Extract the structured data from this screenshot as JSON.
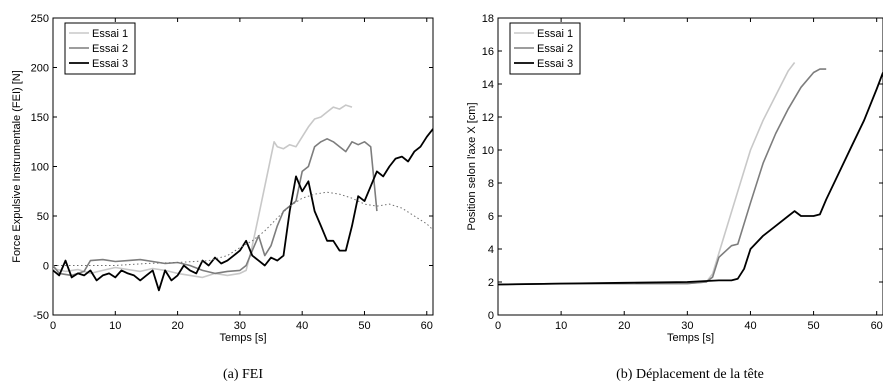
{
  "chart_data": [
    {
      "type": "line",
      "caption": "(a)  FEI",
      "xlabel": "Temps [s]",
      "ylabel": "Force Expulsive Instrumentale (FEI) [N]",
      "xlim": [
        0,
        61
      ],
      "ylim": [
        -50,
        250
      ],
      "xticks": [
        0,
        10,
        20,
        30,
        40,
        50,
        60
      ],
      "yticks": [
        -50,
        0,
        50,
        100,
        150,
        200,
        250
      ],
      "legend_position": "top-left",
      "series": [
        {
          "name": "Essai 1",
          "color": "#c8c8c8",
          "width": 1.6,
          "dash": "",
          "x": [
            0,
            2,
            4,
            6,
            8,
            10,
            12,
            14,
            16,
            18,
            20,
            22,
            24,
            26,
            28,
            30,
            31,
            32,
            33,
            34,
            35,
            35.5,
            36,
            37,
            38,
            39,
            40,
            41,
            42,
            43,
            44,
            45,
            46,
            47,
            48
          ],
          "y": [
            -3,
            -6,
            -4,
            -8,
            -5,
            -2,
            -4,
            -6,
            -3,
            -5,
            -8,
            -10,
            -12,
            -8,
            -10,
            -8,
            -5,
            20,
            50,
            80,
            110,
            125,
            120,
            118,
            122,
            120,
            130,
            140,
            148,
            150,
            155,
            160,
            158,
            162,
            160
          ]
        },
        {
          "name": "Essai 2",
          "color": "#7d7d7d",
          "width": 1.6,
          "dash": "",
          "x": [
            0,
            1,
            3,
            5,
            6,
            8,
            10,
            12,
            14,
            16,
            18,
            20,
            22,
            24,
            26,
            28,
            30,
            31,
            32,
            33,
            34,
            35,
            36,
            37,
            38,
            39,
            40,
            41,
            42,
            43,
            44,
            45,
            46,
            47,
            48,
            49,
            50,
            51,
            52
          ],
          "y": [
            0,
            -8,
            -10,
            -6,
            5,
            6,
            4,
            5,
            6,
            4,
            2,
            3,
            0,
            -5,
            -8,
            -6,
            -5,
            0,
            15,
            30,
            10,
            20,
            40,
            55,
            60,
            65,
            95,
            100,
            120,
            125,
            128,
            125,
            120,
            115,
            125,
            122,
            125,
            120,
            55
          ]
        },
        {
          "name": "Essai 3",
          "color": "#000000",
          "width": 1.8,
          "dash": "",
          "x": [
            0,
            1,
            2,
            3,
            4,
            5,
            6,
            7,
            8,
            9,
            10,
            11,
            12,
            13,
            14,
            15,
            16,
            17,
            18,
            19,
            20,
            21,
            22,
            23,
            24,
            25,
            26,
            27,
            28,
            29,
            30,
            31,
            32,
            33,
            34,
            35,
            36,
            37,
            38,
            39,
            40,
            41,
            42,
            43,
            44,
            45,
            46,
            47,
            48,
            49,
            50,
            51,
            52,
            53,
            54,
            55,
            56,
            57,
            58,
            59,
            60,
            61
          ],
          "y": [
            -5,
            -10,
            5,
            -12,
            -8,
            -10,
            -5,
            -15,
            -10,
            -8,
            -12,
            -5,
            -8,
            -10,
            -15,
            -10,
            -5,
            -25,
            -5,
            -15,
            -10,
            0,
            -5,
            -8,
            5,
            0,
            8,
            2,
            5,
            10,
            15,
            25,
            10,
            5,
            0,
            8,
            5,
            10,
            55,
            90,
            75,
            85,
            55,
            40,
            25,
            25,
            15,
            15,
            40,
            70,
            65,
            80,
            95,
            90,
            100,
            108,
            110,
            105,
            115,
            120,
            130,
            138
          ]
        },
        {
          "name": "",
          "color": "#6e6e6e",
          "width": 1.0,
          "dash": "1.5,2.5",
          "x": [
            0,
            5,
            10,
            15,
            20,
            25,
            28,
            30,
            32,
            34,
            36,
            38,
            40,
            42,
            44,
            46,
            48,
            50,
            52,
            54,
            56,
            58,
            60,
            61
          ],
          "y": [
            0,
            0,
            0,
            2,
            3,
            5,
            10,
            18,
            25,
            35,
            48,
            60,
            68,
            72,
            74,
            72,
            68,
            62,
            60,
            62,
            58,
            50,
            42,
            36
          ]
        }
      ]
    },
    {
      "type": "line",
      "caption": "(b)  Déplacement de la tête",
      "xlabel": "Temps [s]",
      "ylabel": "Position selon l'axe X [cm]",
      "xlim": [
        0,
        61
      ],
      "ylim": [
        0,
        18
      ],
      "xticks": [
        0,
        10,
        20,
        30,
        40,
        50,
        60
      ],
      "yticks": [
        0,
        2,
        4,
        6,
        8,
        10,
        12,
        14,
        16,
        18
      ],
      "legend_position": "top-left",
      "series": [
        {
          "name": "Essai 1",
          "color": "#c8c8c8",
          "width": 1.6,
          "dash": "",
          "x": [
            0,
            10,
            20,
            30,
            33,
            34,
            36,
            38,
            40,
            42,
            44,
            46,
            47
          ],
          "y": [
            1.85,
            1.9,
            1.9,
            1.9,
            2.0,
            2.5,
            5.0,
            7.5,
            10.0,
            11.8,
            13.3,
            14.8,
            15.3
          ]
        },
        {
          "name": "Essai 2",
          "color": "#7d7d7d",
          "width": 1.6,
          "dash": "",
          "x": [
            0,
            10,
            20,
            30,
            33,
            34,
            35,
            37,
            38,
            40,
            42,
            44,
            46,
            48,
            50,
            51,
            52
          ],
          "y": [
            1.85,
            1.9,
            1.9,
            1.9,
            2.0,
            2.3,
            3.5,
            4.2,
            4.3,
            6.8,
            9.2,
            11.0,
            12.5,
            13.8,
            14.7,
            14.9,
            14.9
          ]
        },
        {
          "name": "Essai 3",
          "color": "#000000",
          "width": 1.8,
          "dash": "",
          "x": [
            0,
            10,
            20,
            30,
            35,
            37,
            38,
            39,
            40,
            42,
            44,
            46,
            47,
            48,
            49,
            50,
            51,
            52,
            54,
            56,
            58,
            60,
            61
          ],
          "y": [
            1.85,
            1.9,
            1.95,
            2.0,
            2.1,
            2.1,
            2.2,
            2.8,
            4.0,
            4.8,
            5.4,
            6.0,
            6.3,
            6.0,
            6.0,
            6.0,
            6.1,
            7.0,
            8.6,
            10.2,
            11.8,
            13.7,
            14.7
          ]
        }
      ]
    }
  ]
}
